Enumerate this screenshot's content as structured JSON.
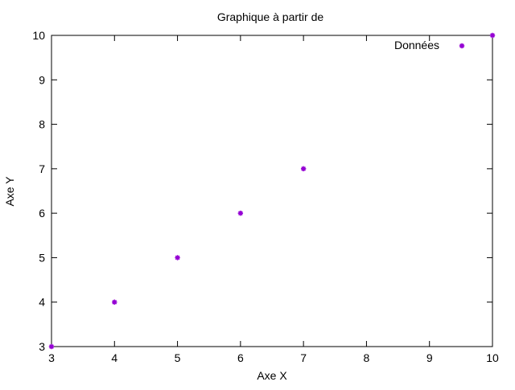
{
  "chart_data": {
    "type": "scatter",
    "title": "Graphique à partir de",
    "xlabel": "Axe X",
    "ylabel": "Axe Y",
    "xlim": [
      3,
      10
    ],
    "ylim": [
      3,
      10
    ],
    "xticks": [
      "3",
      "4",
      "5",
      "6",
      "7",
      "8",
      "9",
      "10"
    ],
    "yticks": [
      "3",
      "4",
      "5",
      "6",
      "7",
      "8",
      "9",
      "10"
    ],
    "grid": false,
    "legend_position": "top-right",
    "series": [
      {
        "name": "Données",
        "color": "#9400d3",
        "marker": "asterisk",
        "x": [
          3,
          4,
          5,
          6,
          7,
          10
        ],
        "y": [
          3,
          4,
          5,
          6,
          7,
          10
        ]
      }
    ]
  }
}
